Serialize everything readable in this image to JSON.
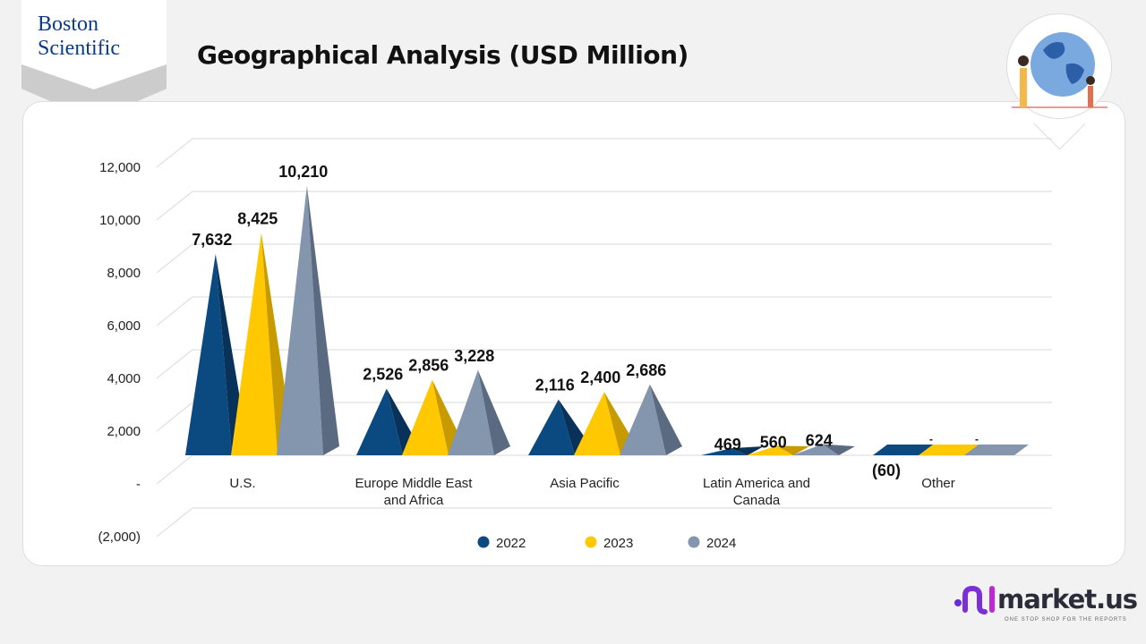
{
  "header": {
    "title": "Geographical Analysis (USD Million)",
    "company_logo": "Boston Scientific",
    "company_logo_lines": [
      "Boston",
      "Scientific"
    ]
  },
  "brand": {
    "name": "market.us",
    "tagline": "ONE STOP SHOP FOR THE REPORTS"
  },
  "chart_data": {
    "type": "bar",
    "style": "3d-pyramid",
    "title": "Geographical Analysis (USD Million)",
    "categories": [
      "U.S.",
      "Europe Middle East and Africa",
      "Asia Pacific",
      "Latin America and Canada",
      "Other"
    ],
    "category_lines": [
      [
        "U.S."
      ],
      [
        "Europe Middle East",
        "and Africa"
      ],
      [
        "Asia Pacific"
      ],
      [
        "Latin America and",
        "Canada"
      ],
      [
        "Other"
      ]
    ],
    "series": [
      {
        "name": "2022",
        "color": "#0b4a80",
        "dark": "#08325a",
        "values": [
          7632,
          2526,
          2116,
          469,
          -60
        ],
        "labels": [
          "7,632",
          "2,526",
          "2,116",
          "469",
          "(60)"
        ]
      },
      {
        "name": "2023",
        "color": "#ffc800",
        "dark": "#c79a00",
        "values": [
          8425,
          2856,
          2400,
          560,
          0
        ],
        "labels": [
          "8,425",
          "2,856",
          "2,400",
          "560",
          "-"
        ]
      },
      {
        "name": "2024",
        "color": "#8496ae",
        "dark": "#5a6a80",
        "values": [
          10210,
          3228,
          2686,
          624,
          0
        ],
        "labels": [
          "10,210",
          "3,228",
          "2,686",
          "624",
          "-"
        ]
      }
    ],
    "yticks": [
      -2000,
      0,
      2000,
      4000,
      6000,
      8000,
      10000,
      12000
    ],
    "ytick_labels": [
      "(2,000)",
      "-",
      "2,000",
      "4,000",
      "6,000",
      "8,000",
      "10,000",
      "12,000"
    ],
    "ylim": [
      -2000,
      12000
    ],
    "grid": true,
    "legend": "bottom"
  }
}
